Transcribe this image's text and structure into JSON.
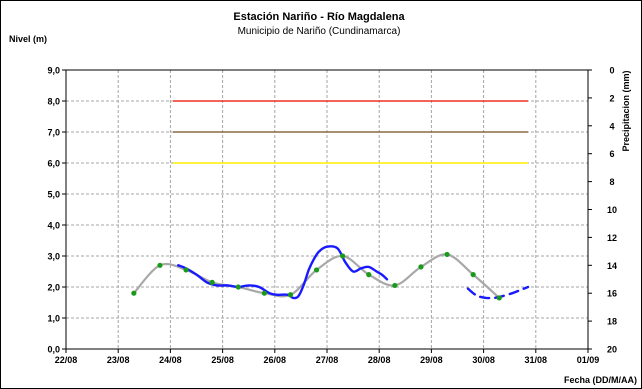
{
  "chart_data": {
    "type": "line",
    "title": "Estación Nariño  - Río Magdalena",
    "subtitle": "Municipio de Nariño (Cundinamarca)",
    "ylabel": "Nivel (m)",
    "y2label": "Precipitacion (mm)",
    "xlabel": "Fecha (DD/M/AA)",
    "x_ticks": [
      "22/08",
      "23/08",
      "24/08",
      "25/08",
      "26/08",
      "27/08",
      "28/08",
      "29/08",
      "30/08",
      "31/08",
      "01/09"
    ],
    "ylim": [
      0,
      9
    ],
    "y_ticks": [
      "0,0",
      "1,0",
      "2,0",
      "3,0",
      "4,0",
      "5,0",
      "6,0",
      "7,0",
      "8,0",
      "9,0"
    ],
    "y2lim": [
      0,
      20
    ],
    "y2_inverted": true,
    "y2_ticks": [
      "0",
      "2",
      "4",
      "6",
      "8",
      "10",
      "12",
      "14",
      "16",
      "18",
      "20"
    ],
    "grid": true,
    "thresholds": [
      {
        "value": 8.0,
        "x_range": [
          2.05,
          8.85
        ],
        "color": "#ee3322"
      },
      {
        "value": 7.0,
        "x_range": [
          2.05,
          8.85
        ],
        "color": "#8b6a44"
      },
      {
        "value": 6.0,
        "x_range": [
          2.05,
          8.85
        ],
        "color": "#ffee00"
      }
    ],
    "series": [
      {
        "style": "smooth",
        "color": "#a8a8a8",
        "x": [
          1.3,
          1.8,
          2.3,
          2.8,
          3.3,
          3.8,
          4.3,
          4.8,
          5.3,
          5.8,
          6.3,
          6.8,
          7.3,
          7.8,
          8.3
        ],
        "values": [
          1.8,
          2.7,
          2.55,
          2.15,
          2.0,
          1.8,
          1.75,
          2.55,
          3.0,
          2.4,
          2.05,
          2.65,
          3.05,
          2.4,
          1.65
        ]
      },
      {
        "style": "line",
        "color": "#1a1aff",
        "x": [
          2.15,
          2.3,
          2.5,
          2.7,
          2.9,
          3.1,
          3.3,
          3.5,
          3.7,
          3.9,
          4.05,
          4.25,
          4.35,
          4.45,
          4.55,
          4.65,
          4.75,
          4.85,
          5.0,
          5.2,
          5.35,
          5.5,
          5.65,
          5.8,
          5.95,
          6.05,
          6.15
        ],
        "values": [
          2.7,
          2.6,
          2.4,
          2.15,
          2.05,
          2.05,
          2.0,
          2.05,
          2.0,
          1.8,
          1.75,
          1.75,
          1.65,
          1.7,
          2.05,
          2.55,
          2.9,
          3.15,
          3.3,
          3.25,
          2.8,
          2.5,
          2.6,
          2.65,
          2.5,
          2.4,
          2.25
        ]
      },
      {
        "style": "dashed",
        "color": "#1a1aff",
        "x": [
          7.7,
          7.8,
          7.9,
          8.05,
          8.2,
          8.35,
          8.55,
          8.7,
          8.85
        ],
        "values": [
          1.95,
          1.8,
          1.7,
          1.65,
          1.65,
          1.7,
          1.8,
          1.9,
          2.0
        ]
      }
    ],
    "points": {
      "color": "#1a9a1a",
      "x": [
        1.3,
        1.8,
        2.3,
        2.8,
        3.3,
        3.8,
        4.3,
        4.8,
        5.3,
        5.8,
        6.3,
        6.8,
        7.3,
        7.8,
        8.3
      ],
      "values": [
        1.8,
        2.7,
        2.55,
        2.15,
        2.0,
        1.8,
        1.75,
        2.55,
        3.0,
        2.4,
        2.05,
        2.65,
        3.05,
        2.4,
        1.65
      ]
    }
  }
}
